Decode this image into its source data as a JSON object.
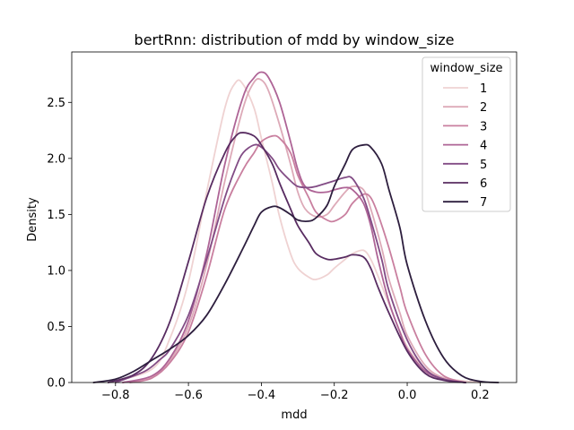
{
  "chart_data": {
    "type": "line",
    "title": "bertRnn: distribution of mdd by window_size",
    "xlabel": "mdd",
    "ylabel": "Density",
    "xlim": [
      -0.92,
      0.3
    ],
    "ylim": [
      0,
      2.95
    ],
    "x_ticks": [
      -0.8,
      -0.6,
      -0.4,
      -0.2,
      0.0,
      0.2
    ],
    "x_tick_labels": [
      "−0.8",
      "−0.6",
      "−0.4",
      "−0.2",
      "0.0",
      "0.2"
    ],
    "y_ticks": [
      0.0,
      0.5,
      1.0,
      1.5,
      2.0,
      2.5
    ],
    "y_tick_labels": [
      "0.0",
      "0.5",
      "1.0",
      "1.5",
      "2.0",
      "2.5"
    ],
    "grid": false,
    "legend": {
      "title": "window_size",
      "placement": "top-right"
    },
    "series": [
      {
        "name": "1",
        "color": "#efd2d2",
        "x": [
          -0.82,
          -0.7,
          -0.65,
          -0.6,
          -0.55,
          -0.5,
          -0.47,
          -0.45,
          -0.42,
          -0.4,
          -0.37,
          -0.35,
          -0.32,
          -0.3,
          -0.27,
          -0.25,
          -0.22,
          -0.2,
          -0.17,
          -0.15,
          -0.12,
          -0.1,
          -0.08,
          -0.05,
          0.0,
          0.05,
          0.1,
          0.2
        ],
        "y": [
          0.0,
          0.12,
          0.4,
          0.9,
          1.7,
          2.45,
          2.68,
          2.66,
          2.45,
          2.18,
          1.78,
          1.48,
          1.15,
          1.02,
          0.94,
          0.92,
          0.96,
          1.02,
          1.1,
          1.15,
          1.18,
          1.1,
          0.95,
          0.7,
          0.32,
          0.12,
          0.04,
          0.0
        ]
      },
      {
        "name": "2",
        "color": "#ddaab8",
        "x": [
          -0.78,
          -0.7,
          -0.65,
          -0.6,
          -0.55,
          -0.5,
          -0.45,
          -0.42,
          -0.4,
          -0.38,
          -0.35,
          -0.32,
          -0.3,
          -0.28,
          -0.25,
          -0.22,
          -0.2,
          -0.17,
          -0.15,
          -0.12,
          -0.1,
          -0.07,
          -0.05,
          -0.02,
          0.0,
          0.05,
          0.1,
          0.16
        ],
        "y": [
          0.0,
          0.05,
          0.2,
          0.5,
          1.05,
          1.8,
          2.45,
          2.68,
          2.7,
          2.6,
          2.3,
          1.95,
          1.7,
          1.55,
          1.48,
          1.5,
          1.58,
          1.7,
          1.75,
          1.72,
          1.55,
          1.2,
          0.92,
          0.62,
          0.42,
          0.15,
          0.04,
          0.0
        ]
      },
      {
        "name": "3",
        "color": "#c97f9f",
        "x": [
          -0.76,
          -0.7,
          -0.65,
          -0.6,
          -0.55,
          -0.5,
          -0.45,
          -0.42,
          -0.4,
          -0.37,
          -0.35,
          -0.32,
          -0.3,
          -0.27,
          -0.25,
          -0.22,
          -0.2,
          -0.17,
          -0.15,
          -0.12,
          -0.1,
          -0.08,
          -0.05,
          -0.02,
          0.0,
          0.05,
          0.1,
          0.16
        ],
        "y": [
          0.0,
          0.04,
          0.18,
          0.45,
          0.95,
          1.55,
          1.9,
          2.05,
          2.15,
          2.2,
          2.18,
          2.05,
          1.85,
          1.65,
          1.52,
          1.45,
          1.44,
          1.5,
          1.6,
          1.68,
          1.65,
          1.5,
          1.2,
          0.85,
          0.62,
          0.25,
          0.06,
          0.0
        ]
      },
      {
        "name": "4",
        "color": "#ae6496",
        "x": [
          -0.78,
          -0.7,
          -0.65,
          -0.6,
          -0.55,
          -0.5,
          -0.45,
          -0.42,
          -0.4,
          -0.38,
          -0.35,
          -0.32,
          -0.3,
          -0.28,
          -0.25,
          -0.22,
          -0.2,
          -0.17,
          -0.15,
          -0.12,
          -0.1,
          -0.08,
          -0.05,
          -0.02,
          0.0,
          0.05,
          0.1,
          0.16
        ],
        "y": [
          0.0,
          0.06,
          0.22,
          0.55,
          1.15,
          1.95,
          2.55,
          2.72,
          2.77,
          2.72,
          2.5,
          2.15,
          1.9,
          1.75,
          1.7,
          1.7,
          1.72,
          1.74,
          1.72,
          1.6,
          1.4,
          1.1,
          0.72,
          0.45,
          0.3,
          0.1,
          0.03,
          0.0
        ]
      },
      {
        "name": "5",
        "color": "#824c85",
        "x": [
          -0.8,
          -0.72,
          -0.68,
          -0.65,
          -0.6,
          -0.55,
          -0.5,
          -0.47,
          -0.45,
          -0.42,
          -0.4,
          -0.37,
          -0.35,
          -0.32,
          -0.3,
          -0.27,
          -0.25,
          -0.22,
          -0.2,
          -0.17,
          -0.15,
          -0.12,
          -0.1,
          -0.07,
          -0.05,
          0.0,
          0.05,
          0.1,
          0.16
        ],
        "y": [
          0.0,
          0.1,
          0.2,
          0.3,
          0.6,
          1.1,
          1.65,
          1.92,
          2.05,
          2.12,
          2.1,
          2.0,
          1.9,
          1.8,
          1.75,
          1.74,
          1.75,
          1.78,
          1.8,
          1.83,
          1.82,
          1.65,
          1.45,
          1.1,
          0.82,
          0.38,
          0.12,
          0.03,
          0.0
        ]
      },
      {
        "name": "6",
        "color": "#582c61",
        "x": [
          -0.82,
          -0.75,
          -0.7,
          -0.65,
          -0.6,
          -0.55,
          -0.5,
          -0.47,
          -0.45,
          -0.42,
          -0.4,
          -0.37,
          -0.35,
          -0.32,
          -0.3,
          -0.27,
          -0.25,
          -0.22,
          -0.2,
          -0.17,
          -0.15,
          -0.12,
          -0.1,
          -0.08,
          -0.05,
          0.0,
          0.05,
          0.1,
          0.16
        ],
        "y": [
          0.0,
          0.07,
          0.22,
          0.55,
          1.08,
          1.65,
          2.05,
          2.2,
          2.23,
          2.2,
          2.12,
          1.95,
          1.78,
          1.55,
          1.4,
          1.25,
          1.15,
          1.1,
          1.1,
          1.12,
          1.14,
          1.12,
          1.02,
          0.85,
          0.62,
          0.28,
          0.08,
          0.02,
          0.0
        ]
      },
      {
        "name": "7",
        "color": "#2d1e3e",
        "x": [
          -0.86,
          -0.8,
          -0.75,
          -0.7,
          -0.65,
          -0.6,
          -0.55,
          -0.5,
          -0.45,
          -0.42,
          -0.4,
          -0.37,
          -0.35,
          -0.32,
          -0.3,
          -0.27,
          -0.25,
          -0.22,
          -0.2,
          -0.17,
          -0.15,
          -0.12,
          -0.1,
          -0.07,
          -0.05,
          -0.02,
          0.0,
          0.05,
          0.1,
          0.15,
          0.2,
          0.25
        ],
        "y": [
          0.0,
          0.03,
          0.1,
          0.2,
          0.3,
          0.42,
          0.6,
          0.88,
          1.2,
          1.4,
          1.52,
          1.57,
          1.56,
          1.5,
          1.45,
          1.44,
          1.47,
          1.58,
          1.75,
          1.95,
          2.08,
          2.12,
          2.1,
          1.95,
          1.72,
          1.38,
          1.05,
          0.55,
          0.22,
          0.06,
          0.01,
          0.0
        ]
      }
    ]
  }
}
